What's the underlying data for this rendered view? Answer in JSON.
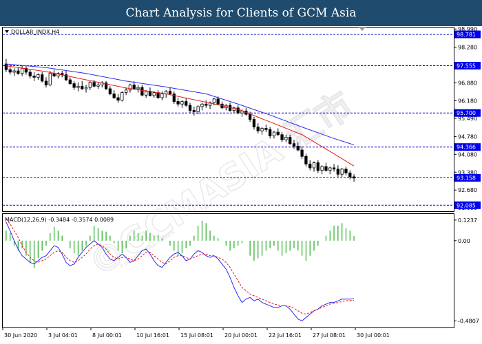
{
  "header": {
    "title": "Chart Analysis for Clients of GCM Asia"
  },
  "watermark": {
    "main": "©GCMASIA 汇市",
    "small": "© GCM ASIA GLOBAL MARKETS"
  },
  "colors": {
    "banner": "#1f4c6e",
    "level_line": "#0000cc",
    "level_badge": "#0000ee",
    "sma_fast": "#e41a1c",
    "sma_slow": "#2b2bf0",
    "macd_bar": "#22aa22",
    "macd_main": "#2b2bf0",
    "macd_signal": "#e41a1c",
    "bull_candle": "#ffffff",
    "bear_candle": "#000000"
  },
  "chart_data": [
    {
      "type": "candlestick",
      "title": "DOLLAR_INDX,H4",
      "symbol_icon": "triangle-down-icon",
      "ylim": [
        91.85,
        99.05
      ],
      "y_ticks": [
        "98.990",
        "98.280",
        "97.555",
        "96.880",
        "96.180",
        "95.490",
        "94.780",
        "94.080",
        "93.380",
        "92.680",
        "91.990"
      ],
      "x_ticks": [
        "30 Jun 2020",
        "3 Jul 04:01",
        "8 Jul 00:01",
        "10 Jul 16:01",
        "15 Jul 08:01",
        "20 Jul 00:01",
        "22 Jul 16:01",
        "27 Jul 08:01",
        "30 Jul 00:01"
      ],
      "levels": [
        {
          "label": "98.781",
          "value": 98.781
        },
        {
          "label": "97.555",
          "value": 97.555
        },
        {
          "label": "95.700",
          "value": 95.7
        },
        {
          "label": "94.366",
          "value": 94.366
        },
        {
          "label": "93.158",
          "value": 93.158
        },
        {
          "label": "92.085",
          "value": 92.085
        }
      ],
      "candles": [
        [
          97.62,
          97.82,
          97.3,
          97.4
        ],
        [
          97.4,
          97.5,
          97.2,
          97.3
        ],
        [
          97.3,
          97.45,
          97.15,
          97.35
        ],
        [
          97.35,
          97.5,
          97.2,
          97.25
        ],
        [
          97.25,
          97.55,
          97.15,
          97.45
        ],
        [
          97.45,
          97.55,
          97.2,
          97.3
        ],
        [
          97.3,
          97.4,
          97.05,
          97.15
        ],
        [
          97.15,
          97.3,
          96.95,
          97.1
        ],
        [
          97.1,
          97.25,
          97.0,
          97.2
        ],
        [
          97.2,
          97.3,
          96.9,
          96.95
        ],
        [
          96.95,
          97.1,
          96.7,
          96.8
        ],
        [
          96.8,
          97.35,
          96.75,
          97.25
        ],
        [
          97.25,
          97.4,
          97.1,
          97.15
        ],
        [
          97.15,
          97.3,
          97.05,
          97.25
        ],
        [
          97.25,
          97.35,
          97.1,
          97.2
        ],
        [
          97.2,
          97.35,
          96.95,
          97.0
        ],
        [
          97.0,
          97.1,
          96.8,
          96.85
        ],
        [
          96.85,
          96.95,
          96.6,
          96.7
        ],
        [
          96.7,
          96.9,
          96.55,
          96.75
        ],
        [
          96.75,
          96.95,
          96.6,
          96.65
        ],
        [
          96.65,
          96.8,
          96.5,
          96.7
        ],
        [
          96.7,
          96.95,
          96.6,
          96.9
        ],
        [
          96.9,
          97.0,
          96.7,
          96.75
        ],
        [
          96.75,
          96.9,
          96.65,
          96.8
        ],
        [
          96.8,
          96.95,
          96.7,
          96.88
        ],
        [
          96.88,
          96.95,
          96.6,
          96.65
        ],
        [
          96.65,
          96.75,
          96.4,
          96.45
        ],
        [
          96.45,
          96.6,
          96.25,
          96.3
        ],
        [
          96.3,
          96.45,
          96.1,
          96.2
        ],
        [
          96.2,
          96.55,
          96.15,
          96.5
        ],
        [
          96.5,
          96.7,
          96.4,
          96.6
        ],
        [
          96.6,
          96.85,
          96.5,
          96.8
        ],
        [
          96.8,
          96.95,
          96.6,
          96.65
        ],
        [
          96.65,
          96.8,
          96.5,
          96.7
        ],
        [
          96.7,
          96.8,
          96.35,
          96.4
        ],
        [
          96.4,
          96.6,
          96.3,
          96.55
        ],
        [
          96.55,
          96.7,
          96.35,
          96.38
        ],
        [
          96.38,
          96.55,
          96.3,
          96.5
        ],
        [
          96.5,
          96.6,
          96.25,
          96.3
        ],
        [
          96.3,
          96.55,
          96.2,
          96.45
        ],
        [
          96.45,
          96.6,
          96.3,
          96.55
        ],
        [
          96.55,
          96.7,
          96.4,
          96.45
        ],
        [
          96.45,
          96.55,
          96.05,
          96.15
        ],
        [
          96.15,
          96.3,
          95.95,
          96.05
        ],
        [
          96.05,
          96.2,
          95.9,
          96.15
        ],
        [
          96.15,
          96.3,
          95.95,
          96.0
        ],
        [
          96.0,
          96.1,
          95.7,
          95.8
        ],
        [
          95.8,
          95.95,
          95.6,
          95.75
        ],
        [
          95.75,
          96.0,
          95.65,
          95.95
        ],
        [
          95.95,
          96.1,
          95.8,
          96.05
        ],
        [
          96.05,
          96.2,
          95.9,
          96.0
        ],
        [
          96.0,
          96.15,
          95.85,
          96.1
        ],
        [
          96.1,
          96.3,
          96.0,
          96.25
        ],
        [
          96.25,
          96.35,
          96.0,
          96.05
        ],
        [
          96.05,
          96.15,
          95.85,
          95.9
        ],
        [
          95.9,
          96.05,
          95.8,
          96.0
        ],
        [
          96.0,
          96.1,
          95.75,
          95.8
        ],
        [
          95.8,
          95.95,
          95.7,
          95.9
        ],
        [
          95.9,
          96.0,
          95.65,
          95.7
        ],
        [
          95.7,
          95.85,
          95.55,
          95.78
        ],
        [
          95.78,
          95.9,
          95.6,
          95.65
        ],
        [
          95.65,
          95.75,
          95.35,
          95.45
        ],
        [
          95.45,
          95.55,
          95.05,
          95.15
        ],
        [
          95.15,
          95.3,
          94.9,
          95.0
        ],
        [
          95.0,
          95.15,
          94.85,
          95.1
        ],
        [
          95.1,
          95.25,
          94.95,
          95.05
        ],
        [
          95.05,
          95.15,
          94.7,
          94.8
        ],
        [
          94.8,
          95.0,
          94.7,
          94.95
        ],
        [
          94.95,
          95.1,
          94.8,
          94.85
        ],
        [
          94.85,
          94.95,
          94.55,
          94.65
        ],
        [
          94.65,
          94.85,
          94.55,
          94.75
        ],
        [
          94.75,
          94.85,
          94.45,
          94.5
        ],
        [
          94.5,
          94.65,
          94.3,
          94.4
        ],
        [
          94.4,
          94.55,
          94.2,
          94.25
        ],
        [
          94.25,
          94.4,
          93.9,
          94.0
        ],
        [
          94.0,
          94.1,
          93.6,
          93.7
        ],
        [
          93.7,
          93.85,
          93.45,
          93.55
        ],
        [
          93.55,
          93.8,
          93.4,
          93.75
        ],
        [
          93.75,
          93.85,
          93.35,
          93.45
        ],
        [
          93.45,
          93.65,
          93.3,
          93.6
        ],
        [
          93.6,
          93.75,
          93.4,
          93.45
        ],
        [
          93.45,
          93.6,
          93.3,
          93.55
        ],
        [
          93.55,
          93.7,
          93.4,
          93.5
        ],
        [
          93.5,
          93.65,
          93.2,
          93.3
        ],
        [
          93.3,
          93.55,
          93.2,
          93.5
        ],
        [
          93.5,
          93.6,
          93.25,
          93.35
        ],
        [
          93.35,
          93.45,
          93.1,
          93.2
        ],
        [
          93.2,
          93.3,
          93.0,
          93.15
        ]
      ],
      "sma_fast": [
        [
          0,
          97.55
        ],
        [
          10,
          97.32
        ],
        [
          20,
          97.0
        ],
        [
          30,
          96.68
        ],
        [
          40,
          96.45
        ],
        [
          50,
          96.12
        ],
        [
          58,
          95.85
        ],
        [
          66,
          95.35
        ],
        [
          74,
          94.85
        ],
        [
          82,
          94.1
        ],
        [
          87,
          93.62
        ]
      ],
      "sma_slow": [
        [
          0,
          97.62
        ],
        [
          10,
          97.48
        ],
        [
          20,
          97.25
        ],
        [
          30,
          96.95
        ],
        [
          40,
          96.72
        ],
        [
          50,
          96.45
        ],
        [
          58,
          96.05
        ],
        [
          66,
          95.62
        ],
        [
          74,
          95.15
        ],
        [
          82,
          94.7
        ],
        [
          87,
          94.45
        ]
      ]
    },
    {
      "type": "macd",
      "title": "MACD(12,26,9) -0.3484 -0.3574 0.0089",
      "ylim": [
        -0.52,
        0.16
      ],
      "y_ticks": [
        "0.1237",
        "0.00",
        "-0.4807"
      ],
      "histogram": [
        0.02,
        0.015,
        -0.01,
        -0.02,
        -0.015,
        -0.03,
        -0.045,
        -0.055,
        -0.035,
        -0.02,
        -0.01,
        0.015,
        0.028,
        0.02,
        0.01,
        0.0,
        -0.015,
        -0.025,
        -0.03,
        -0.02,
        -0.01,
        0.01,
        0.03,
        0.025,
        0.02,
        0.018,
        0.01,
        -0.005,
        -0.02,
        -0.025,
        -0.015,
        0.01,
        0.02,
        0.015,
        0.01,
        0.02,
        0.015,
        0.01,
        0.012,
        0.005,
        0.0,
        -0.01,
        -0.02,
        -0.03,
        -0.025,
        -0.015,
        -0.01,
        0.01,
        0.03,
        0.04,
        0.035,
        0.02,
        0.01,
        0.005,
        0.0,
        -0.01,
        -0.02,
        -0.015,
        -0.01,
        -0.005,
        0.0,
        -0.03,
        -0.04,
        -0.035,
        -0.03,
        -0.02,
        -0.015,
        -0.01,
        -0.02,
        -0.03,
        -0.025,
        -0.02,
        -0.015,
        -0.02,
        -0.03,
        -0.04,
        -0.03,
        -0.02,
        -0.01,
        0.0,
        0.01,
        0.02,
        0.03,
        0.03,
        0.035,
        0.025,
        0.02,
        0.009
      ],
      "macd_line": [
        0.11,
        0.06,
        0.0,
        -0.05,
        -0.09,
        -0.11,
        -0.13,
        -0.14,
        -0.12,
        -0.1,
        -0.09,
        -0.06,
        -0.03,
        -0.04,
        -0.08,
        -0.13,
        -0.15,
        -0.14,
        -0.1,
        -0.07,
        -0.04,
        -0.02,
        0.0,
        -0.02,
        -0.04,
        -0.08,
        -0.11,
        -0.12,
        -0.1,
        -0.08,
        -0.1,
        -0.13,
        -0.12,
        -0.09,
        -0.06,
        -0.05,
        -0.08,
        -0.12,
        -0.15,
        -0.16,
        -0.13,
        -0.1,
        -0.08,
        -0.07,
        -0.09,
        -0.12,
        -0.11,
        -0.08,
        -0.06,
        -0.07,
        -0.09,
        -0.1,
        -0.09,
        -0.11,
        -0.14,
        -0.17,
        -0.22,
        -0.28,
        -0.33,
        -0.37,
        -0.35,
        -0.34,
        -0.36,
        -0.35,
        -0.37,
        -0.38,
        -0.39,
        -0.4,
        -0.4,
        -0.39,
        -0.39,
        -0.41,
        -0.44,
        -0.47,
        -0.48,
        -0.46,
        -0.44,
        -0.42,
        -0.41,
        -0.39,
        -0.38,
        -0.37,
        -0.37,
        -0.36,
        -0.35,
        -0.35,
        -0.35,
        -0.348
      ],
      "signal_line": [
        0.13,
        0.1,
        0.06,
        0.02,
        -0.03,
        -0.07,
        -0.1,
        -0.12,
        -0.13,
        -0.12,
        -0.11,
        -0.09,
        -0.07,
        -0.06,
        -0.07,
        -0.1,
        -0.12,
        -0.13,
        -0.12,
        -0.1,
        -0.08,
        -0.05,
        -0.03,
        -0.02,
        -0.03,
        -0.05,
        -0.08,
        -0.1,
        -0.11,
        -0.1,
        -0.1,
        -0.11,
        -0.12,
        -0.11,
        -0.09,
        -0.07,
        -0.07,
        -0.09,
        -0.11,
        -0.13,
        -0.14,
        -0.12,
        -0.1,
        -0.09,
        -0.09,
        -0.1,
        -0.11,
        -0.1,
        -0.09,
        -0.08,
        -0.08,
        -0.09,
        -0.09,
        -0.1,
        -0.11,
        -0.13,
        -0.16,
        -0.2,
        -0.24,
        -0.28,
        -0.3,
        -0.32,
        -0.33,
        -0.34,
        -0.35,
        -0.36,
        -0.37,
        -0.38,
        -0.385,
        -0.39,
        -0.39,
        -0.395,
        -0.405,
        -0.42,
        -0.435,
        -0.44,
        -0.43,
        -0.42,
        -0.41,
        -0.4,
        -0.39,
        -0.38,
        -0.375,
        -0.37,
        -0.365,
        -0.36,
        -0.358,
        -0.357
      ]
    }
  ]
}
